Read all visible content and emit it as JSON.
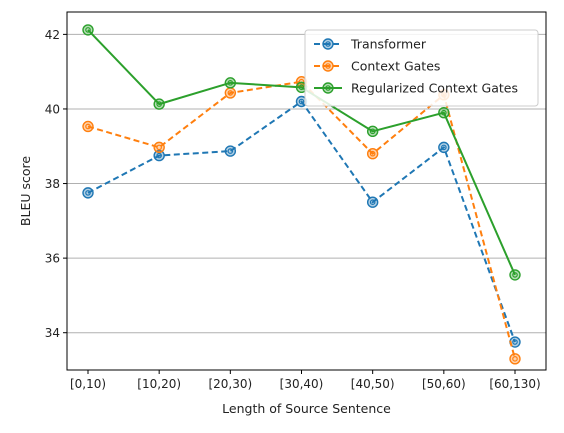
{
  "chart_data": {
    "type": "line",
    "categories": [
      "[0,10)",
      "[10,20)",
      "[20,30)",
      "[30,40)",
      "[40,50)",
      "[50,60)",
      "[60,130)"
    ],
    "xlabel": "Length of Source Sentence",
    "ylabel": "BLEU score",
    "ylim": [
      33.0,
      42.6
    ],
    "yticks": [
      34,
      36,
      38,
      40,
      42
    ],
    "grid": "horizontal",
    "legend_position": "top-right",
    "series": [
      {
        "name": "Transformer",
        "values": [
          37.75,
          38.75,
          38.87,
          40.2,
          37.5,
          38.97,
          33.75
        ],
        "color": "#1f77b4",
        "linestyle": "dashed"
      },
      {
        "name": "Context Gates",
        "values": [
          39.53,
          38.97,
          40.43,
          40.73,
          38.8,
          40.38,
          33.3
        ],
        "color": "#ff7f0e",
        "linestyle": "dashed"
      },
      {
        "name": "Regularized Context Gates",
        "values": [
          42.12,
          40.13,
          40.7,
          40.58,
          39.4,
          39.9,
          35.55
        ],
        "color": "#2ca02c",
        "linestyle": "solid"
      }
    ]
  }
}
